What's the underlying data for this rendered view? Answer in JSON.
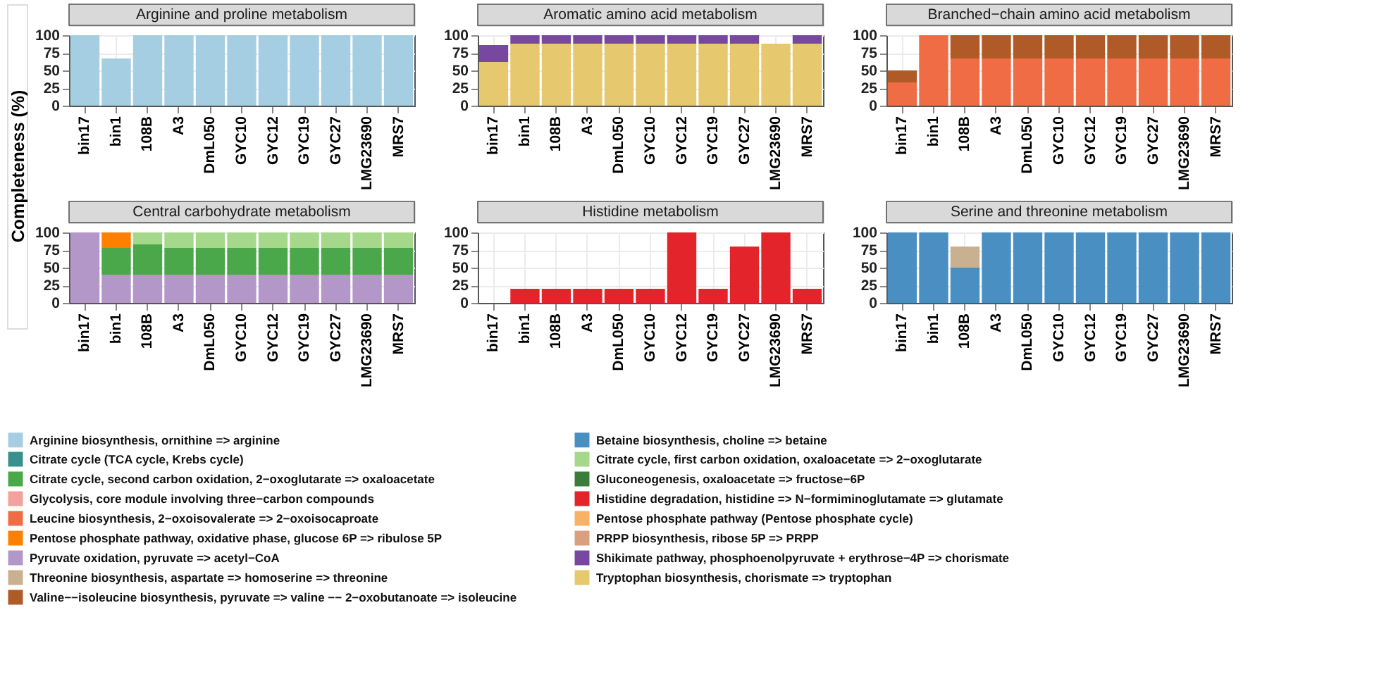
{
  "chart_data": [
    {
      "type": "bar",
      "title": "Arginine and proline metabolism",
      "ylabel": "Completeness (%)",
      "stacked": true,
      "legend": "bottom",
      "grid": true,
      "ylim": [
        0,
        100
      ],
      "yticks": [
        0,
        25,
        50,
        75,
        100
      ],
      "categories": [
        "bin17",
        "bin1",
        "108B",
        "A3",
        "DmL050",
        "GYC10",
        "GYC12",
        "GYC19",
        "GYC27",
        "LMG23690",
        "MRS7"
      ],
      "series": [
        {
          "name": "Arginine biosynthesis, ornithine => arginine",
          "color": "#a6cee3",
          "values": [
            100,
            67,
            100,
            100,
            100,
            100,
            100,
            100,
            100,
            100,
            100
          ]
        }
      ]
    },
    {
      "type": "bar",
      "title": "Aromatic amino acid metabolism",
      "stacked": true,
      "legend": "bottom",
      "grid": true,
      "ylim": [
        0,
        100
      ],
      "yticks": [
        0,
        25,
        50,
        75,
        100
      ],
      "categories": [
        "bin17",
        "bin1",
        "108B",
        "A3",
        "DmL050",
        "GYC10",
        "GYC12",
        "GYC19",
        "GYC27",
        "LMG23690",
        "MRS7"
      ],
      "series": [
        {
          "name": "Tryptophan biosynthesis, chorismate => tryptophan",
          "color": "#e6c86e",
          "values": [
            62,
            88,
            88,
            88,
            88,
            88,
            88,
            88,
            88,
            88,
            88
          ]
        },
        {
          "name": "Shikimate pathway, phosphoenolpyruvate + erythrose−4P => chorismate",
          "color": "#7848a0",
          "values": [
            24,
            12,
            12,
            12,
            12,
            12,
            12,
            12,
            12,
            null,
            12
          ]
        }
      ]
    },
    {
      "type": "bar",
      "title": "Branched−chain amino acid metabolism",
      "stacked": true,
      "legend": "bottom",
      "grid": true,
      "ylim": [
        0,
        100
      ],
      "yticks": [
        0,
        25,
        50,
        75,
        100
      ],
      "categories": [
        "bin17",
        "bin1",
        "108B",
        "A3",
        "DmL050",
        "GYC10",
        "GYC12",
        "GYC19",
        "GYC27",
        "LMG23690",
        "MRS7"
      ],
      "series": [
        {
          "name": "Leucine biosynthesis, 2−oxoisovalerate => 2−oxoisocaproate",
          "color": "#ef6c45",
          "values": [
            33,
            100,
            67,
            67,
            67,
            67,
            67,
            67,
            67,
            67,
            67
          ]
        },
        {
          "name": "Valine−−isoleucine biosynthesis, pyruvate => valine −− 2−oxobutanoate => isoleucine",
          "color": "#b05a28",
          "values": [
            17,
            null,
            33,
            33,
            33,
            33,
            33,
            33,
            33,
            33,
            33
          ]
        }
      ]
    },
    {
      "type": "bar",
      "title": "Central carbohydrate metabolism",
      "stacked": true,
      "legend": "bottom",
      "grid": true,
      "ylim": [
        0,
        100
      ],
      "yticks": [
        0,
        25,
        50,
        75,
        100
      ],
      "categories": [
        "bin17",
        "bin1",
        "108B",
        "A3",
        "DmL050",
        "GYC10",
        "GYC12",
        "GYC19",
        "GYC27",
        "LMG23690",
        "MRS7"
      ],
      "series": [
        {
          "name": "Pyruvate oxidation, pyruvate => acetyl−CoA",
          "color": "#b497c9",
          "values": [
            100,
            40,
            40,
            40,
            40,
            40,
            40,
            40,
            40,
            40,
            40
          ]
        },
        {
          "name": "Citrate cycle, second carbon oxidation, 2−oxoglutarate => oxaloacetate",
          "color": "#4aa84b",
          "values": [
            null,
            38,
            43,
            38,
            38,
            38,
            38,
            38,
            38,
            38,
            38
          ]
        },
        {
          "name": "Citrate cycle, first carbon oxidation, oxaloacetate => 2−oxoglutarate",
          "color": "#a6d88b",
          "values": [
            null,
            null,
            17,
            22,
            22,
            22,
            22,
            22,
            22,
            22,
            22
          ]
        },
        {
          "name": "Pentose phosphate pathway, oxidative phase, glucose 6P => ribulose 5P",
          "color": "#ff7f00",
          "values": [
            null,
            22,
            null,
            null,
            null,
            null,
            null,
            null,
            null,
            null,
            null
          ]
        },
        {
          "name": "Citrate cycle (TCA cycle, Krebs cycle)",
          "color": "#3a8f8f",
          "values": [
            null,
            null,
            null,
            null,
            null,
            null,
            null,
            null,
            null,
            null,
            null
          ]
        },
        {
          "name": "Glycolysis, core module involving three−carbon compounds",
          "color": "#f4a09c",
          "values": [
            null,
            null,
            null,
            null,
            null,
            null,
            null,
            null,
            null,
            null,
            null
          ]
        },
        {
          "name": "Gluconeogenesis, oxaloacetate => fructose−6P",
          "color": "#3a7d3a",
          "values": [
            null,
            null,
            null,
            null,
            null,
            null,
            null,
            null,
            null,
            null,
            null
          ]
        },
        {
          "name": "Pentose phosphate pathway (Pentose phosphate cycle)",
          "color": "#f7b266",
          "values": [
            null,
            null,
            null,
            null,
            null,
            null,
            null,
            null,
            null,
            null,
            null
          ]
        }
      ]
    },
    {
      "type": "bar",
      "title": "Histidine metabolism",
      "stacked": true,
      "legend": "bottom",
      "grid": true,
      "ylim": [
        0,
        100
      ],
      "yticks": [
        0,
        25,
        50,
        75,
        100
      ],
      "categories": [
        "bin17",
        "bin1",
        "108B",
        "A3",
        "DmL050",
        "GYC10",
        "GYC12",
        "GYC19",
        "GYC27",
        "LMG23690",
        "MRS7"
      ],
      "series": [
        {
          "name": "Histidine degradation, histidine => N−formiminoglutamate => glutamate",
          "color": "#e3242b",
          "values": [
            0,
            20,
            20,
            20,
            20,
            20,
            100,
            20,
            80,
            100,
            20
          ]
        },
        {
          "name": "PRPP biosynthesis, ribose 5P => PRPP",
          "color": "#d9a07f",
          "values": [
            null,
            null,
            null,
            null,
            null,
            null,
            null,
            null,
            null,
            null,
            null
          ]
        }
      ]
    },
    {
      "type": "bar",
      "title": "Serine and threonine metabolism",
      "stacked": true,
      "legend": "bottom",
      "grid": true,
      "ylim": [
        0,
        100
      ],
      "yticks": [
        0,
        25,
        50,
        75,
        100
      ],
      "categories": [
        "bin17",
        "bin1",
        "108B",
        "A3",
        "DmL050",
        "GYC10",
        "GYC12",
        "GYC19",
        "GYC27",
        "LMG23690",
        "MRS7"
      ],
      "series": [
        {
          "name": "Betaine biosynthesis, choline => betaine",
          "color": "#4a8fc2",
          "values": [
            100,
            100,
            50,
            100,
            100,
            100,
            100,
            100,
            100,
            100,
            100
          ]
        },
        {
          "name": "Threonine biosynthesis, aspartate => homoserine => threonine",
          "color": "#c8b090",
          "values": [
            null,
            null,
            30,
            null,
            null,
            null,
            null,
            null,
            null,
            null,
            null
          ]
        }
      ]
    }
  ]
}
